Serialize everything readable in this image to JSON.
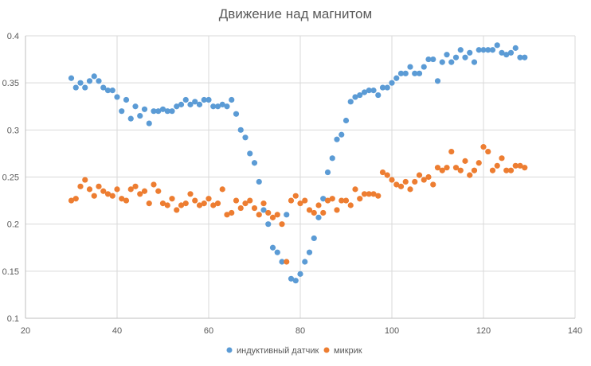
{
  "chart_data": {
    "type": "scatter",
    "title": "Движение над магнитом",
    "xlabel": "",
    "ylabel": "",
    "xlim": [
      20,
      140
    ],
    "ylim": [
      0.1,
      0.4
    ],
    "x_ticks": [
      20,
      40,
      60,
      80,
      100,
      120,
      140
    ],
    "y_ticks": [
      0.1,
      0.15,
      0.2,
      0.25,
      0.3,
      0.35,
      0.4
    ],
    "x_tick_labels": [
      "20",
      "40",
      "60",
      "80",
      "100",
      "120",
      "140"
    ],
    "y_tick_labels": [
      "0.1",
      "0.15",
      "0.2",
      "0.25",
      "0.3",
      "0.35",
      "0.4"
    ],
    "grid": "horizontal",
    "legend_position": "bottom",
    "series": [
      {
        "name": "индуктивный датчик",
        "color": "#5B9BD5",
        "x": [
          30,
          31,
          32,
          33,
          34,
          35,
          36,
          37,
          38,
          39,
          40,
          41,
          42,
          43,
          44,
          45,
          46,
          47,
          48,
          49,
          50,
          51,
          52,
          53,
          54,
          55,
          56,
          57,
          58,
          59,
          60,
          61,
          62,
          63,
          64,
          65,
          66,
          67,
          68,
          69,
          70,
          71,
          72,
          73,
          74,
          75,
          76,
          77,
          78,
          79,
          80,
          81,
          82,
          83,
          84,
          85,
          86,
          87,
          88,
          89,
          90,
          91,
          92,
          93,
          94,
          95,
          96,
          97,
          98,
          99,
          100,
          101,
          102,
          103,
          104,
          105,
          106,
          107,
          108,
          109,
          110,
          111,
          112,
          113,
          114,
          115,
          116,
          117,
          118,
          119,
          120,
          121,
          122,
          123,
          124,
          125,
          126,
          127,
          128,
          129
        ],
        "y": [
          0.355,
          0.345,
          0.35,
          0.345,
          0.352,
          0.357,
          0.352,
          0.345,
          0.342,
          0.342,
          0.335,
          0.32,
          0.332,
          0.312,
          0.325,
          0.315,
          0.322,
          0.307,
          0.32,
          0.32,
          0.322,
          0.32,
          0.32,
          0.325,
          0.327,
          0.332,
          0.327,
          0.33,
          0.327,
          0.332,
          0.332,
          0.325,
          0.325,
          0.327,
          0.325,
          0.332,
          0.317,
          0.3,
          0.292,
          0.275,
          0.265,
          0.245,
          0.215,
          0.2,
          0.175,
          0.17,
          0.16,
          0.21,
          0.142,
          0.14,
          0.147,
          0.16,
          0.17,
          0.185,
          0.207,
          0.227,
          0.255,
          0.27,
          0.29,
          0.295,
          0.31,
          0.33,
          0.335,
          0.337,
          0.34,
          0.342,
          0.342,
          0.337,
          0.345,
          0.345,
          0.35,
          0.355,
          0.36,
          0.36,
          0.367,
          0.36,
          0.36,
          0.367,
          0.375,
          0.375,
          0.352,
          0.372,
          0.38,
          0.372,
          0.377,
          0.385,
          0.377,
          0.382,
          0.372,
          0.385,
          0.385,
          0.385,
          0.385,
          0.39,
          0.382,
          0.38,
          0.382,
          0.387,
          0.377,
          0.377
        ]
      },
      {
        "name": "микрик",
        "color": "#ED7D31",
        "x": [
          30,
          31,
          32,
          33,
          34,
          35,
          36,
          37,
          38,
          39,
          40,
          41,
          42,
          43,
          44,
          45,
          46,
          47,
          48,
          49,
          50,
          51,
          52,
          53,
          54,
          55,
          56,
          57,
          58,
          59,
          60,
          61,
          62,
          63,
          64,
          65,
          66,
          67,
          68,
          69,
          70,
          71,
          72,
          73,
          74,
          75,
          76,
          77,
          78,
          79,
          80,
          81,
          82,
          83,
          84,
          85,
          86,
          87,
          88,
          89,
          90,
          91,
          92,
          93,
          94,
          95,
          96,
          97,
          98,
          99,
          100,
          101,
          102,
          103,
          104,
          105,
          106,
          107,
          108,
          109,
          110,
          111,
          112,
          113,
          114,
          115,
          116,
          117,
          118,
          119,
          120,
          121,
          122,
          123,
          124,
          125,
          126,
          127,
          128,
          129
        ],
        "y": [
          0.225,
          0.227,
          0.24,
          0.247,
          0.237,
          0.23,
          0.24,
          0.235,
          0.232,
          0.23,
          0.237,
          0.227,
          0.225,
          0.237,
          0.24,
          0.232,
          0.235,
          0.222,
          0.242,
          0.235,
          0.222,
          0.22,
          0.227,
          0.215,
          0.22,
          0.222,
          0.232,
          0.225,
          0.22,
          0.222,
          0.227,
          0.22,
          0.222,
          0.237,
          0.21,
          0.212,
          0.225,
          0.217,
          0.222,
          0.225,
          0.217,
          0.21,
          0.222,
          0.212,
          0.207,
          0.21,
          0.2,
          0.16,
          0.225,
          0.23,
          0.222,
          0.225,
          0.215,
          0.212,
          0.22,
          0.212,
          0.225,
          0.227,
          0.215,
          0.225,
          0.225,
          0.22,
          0.237,
          0.227,
          0.232,
          0.232,
          0.232,
          0.23,
          0.255,
          0.252,
          0.247,
          0.242,
          0.24,
          0.245,
          0.237,
          0.245,
          0.252,
          0.247,
          0.25,
          0.242,
          0.26,
          0.257,
          0.26,
          0.277,
          0.26,
          0.257,
          0.267,
          0.252,
          0.257,
          0.265,
          0.282,
          0.277,
          0.257,
          0.262,
          0.27,
          0.257,
          0.257,
          0.262,
          0.262,
          0.26
        ]
      }
    ]
  }
}
